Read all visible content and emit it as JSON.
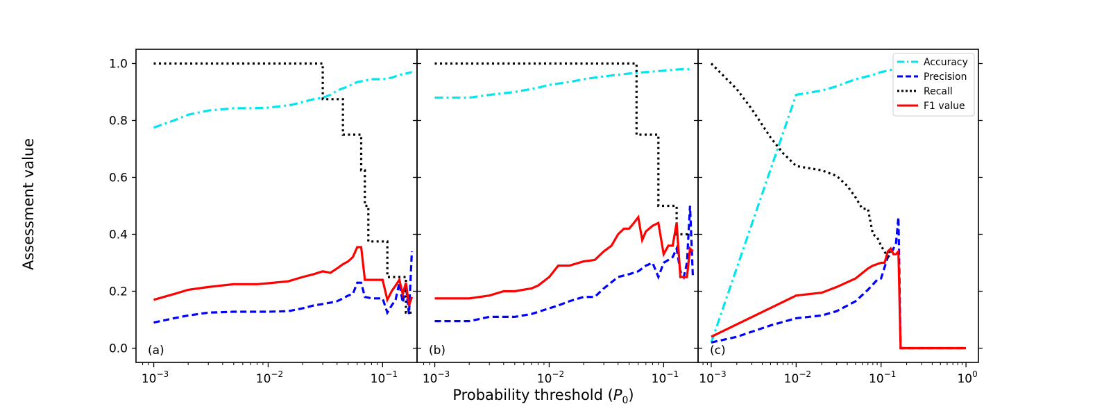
{
  "figure": {
    "ylabel": "Assessment value",
    "xlabel_main": "Probability threshold (",
    "xlabel_sym": "P",
    "xlabel_sub": "0",
    "xlabel_close": ")"
  },
  "legend": {
    "position": "top-right of panel (c)",
    "items": [
      {
        "label": "Accuracy",
        "color": "#00e5ee",
        "style": "dashdot"
      },
      {
        "label": "Precision",
        "color": "#0000ff",
        "style": "dashed"
      },
      {
        "label": "Recall",
        "color": "#000000",
        "style": "dotted"
      },
      {
        "label": "F1 value",
        "color": "#ff0000",
        "style": "solid"
      }
    ]
  },
  "colors": {
    "accuracy": "#00e5ee",
    "precision": "#0000ff",
    "recall": "#000000",
    "f1": "#ff0000"
  },
  "chart_data": [
    {
      "type": "line",
      "panel": "(a)",
      "xscale": "log",
      "xlim": [
        0.0007,
        0.2
      ],
      "ylim": [
        -0.05,
        1.05
      ],
      "yticks": [
        0.0,
        0.2,
        0.4,
        0.6,
        0.8,
        1.0
      ],
      "ytick_labels": [
        "0.0",
        "0.2",
        "0.4",
        "0.6",
        "0.8",
        "1.0"
      ],
      "xticks": [
        0.001,
        0.01,
        0.1
      ],
      "xtick_labels": [
        {
          "base": "10",
          "exp": "−3"
        },
        {
          "base": "10",
          "exp": "−2"
        },
        {
          "base": "10",
          "exp": "−1"
        }
      ],
      "series": [
        {
          "name": "Accuracy",
          "x": [
            0.001,
            0.0015,
            0.002,
            0.003,
            0.005,
            0.007,
            0.01,
            0.013,
            0.016,
            0.02,
            0.025,
            0.03,
            0.035,
            0.04,
            0.05,
            0.06,
            0.07,
            0.08,
            0.1,
            0.12,
            0.14,
            0.16,
            0.18
          ],
          "y": [
            0.775,
            0.8,
            0.82,
            0.835,
            0.843,
            0.843,
            0.845,
            0.85,
            0.855,
            0.865,
            0.875,
            0.88,
            0.89,
            0.905,
            0.92,
            0.935,
            0.94,
            0.945,
            0.945,
            0.95,
            0.96,
            0.965,
            0.97
          ]
        },
        {
          "name": "Precision",
          "x": [
            0.001,
            0.0015,
            0.002,
            0.003,
            0.005,
            0.008,
            0.01,
            0.015,
            0.02,
            0.025,
            0.03,
            0.035,
            0.04,
            0.045,
            0.05,
            0.055,
            0.06,
            0.065,
            0.07,
            0.08,
            0.1,
            0.11,
            0.12,
            0.13,
            0.14,
            0.15,
            0.16,
            0.17,
            0.18
          ],
          "y": [
            0.09,
            0.105,
            0.115,
            0.125,
            0.128,
            0.128,
            0.128,
            0.13,
            0.14,
            0.15,
            0.155,
            0.16,
            0.165,
            0.175,
            0.185,
            0.19,
            0.23,
            0.23,
            0.18,
            0.175,
            0.175,
            0.125,
            0.15,
            0.17,
            0.23,
            0.16,
            0.22,
            0.12,
            0.34
          ]
        },
        {
          "name": "Recall",
          "x": [
            0.001,
            0.03,
            0.03,
            0.045,
            0.045,
            0.065,
            0.065,
            0.07,
            0.07,
            0.075,
            0.075,
            0.11,
            0.11,
            0.16,
            0.16,
            0.18
          ],
          "y": [
            1.0,
            1.0,
            0.875,
            0.875,
            0.75,
            0.75,
            0.625,
            0.625,
            0.5,
            0.5,
            0.375,
            0.375,
            0.25,
            0.25,
            0.125,
            0.125
          ]
        },
        {
          "name": "F1 value",
          "x": [
            0.001,
            0.0015,
            0.002,
            0.003,
            0.005,
            0.008,
            0.01,
            0.015,
            0.02,
            0.025,
            0.03,
            0.035,
            0.04,
            0.045,
            0.05,
            0.055,
            0.06,
            0.065,
            0.07,
            0.08,
            0.1,
            0.11,
            0.12,
            0.13,
            0.14,
            0.15,
            0.16,
            0.17,
            0.18
          ],
          "y": [
            0.17,
            0.19,
            0.205,
            0.215,
            0.225,
            0.225,
            0.228,
            0.235,
            0.25,
            0.26,
            0.27,
            0.265,
            0.28,
            0.295,
            0.305,
            0.32,
            0.355,
            0.355,
            0.24,
            0.24,
            0.24,
            0.17,
            0.2,
            0.22,
            0.24,
            0.19,
            0.23,
            0.15,
            0.18
          ]
        }
      ]
    },
    {
      "type": "line",
      "panel": "(b)",
      "xscale": "log",
      "xlim": [
        0.0007,
        0.2
      ],
      "ylim": [
        -0.05,
        1.05
      ],
      "yticks": [
        0.0,
        0.2,
        0.4,
        0.6,
        0.8,
        1.0
      ],
      "xticks": [
        0.001,
        0.01,
        0.1
      ],
      "xtick_labels": [
        {
          "base": "10",
          "exp": "−3"
        },
        {
          "base": "10",
          "exp": "−2"
        },
        {
          "base": "10",
          "exp": "−1"
        }
      ],
      "series": [
        {
          "name": "Accuracy",
          "x": [
            0.001,
            0.002,
            0.003,
            0.005,
            0.008,
            0.01,
            0.015,
            0.02,
            0.03,
            0.05,
            0.07,
            0.1,
            0.14,
            0.18
          ],
          "y": [
            0.88,
            0.88,
            0.89,
            0.9,
            0.915,
            0.925,
            0.935,
            0.945,
            0.955,
            0.965,
            0.97,
            0.975,
            0.98,
            0.98
          ]
        },
        {
          "name": "Precision",
          "x": [
            0.001,
            0.002,
            0.003,
            0.005,
            0.007,
            0.01,
            0.012,
            0.015,
            0.02,
            0.025,
            0.03,
            0.04,
            0.05,
            0.06,
            0.07,
            0.08,
            0.09,
            0.1,
            0.11,
            0.12,
            0.13,
            0.14,
            0.15,
            0.16,
            0.17,
            0.18
          ],
          "y": [
            0.095,
            0.095,
            0.11,
            0.11,
            0.12,
            0.14,
            0.15,
            0.165,
            0.18,
            0.18,
            0.21,
            0.25,
            0.26,
            0.27,
            0.29,
            0.3,
            0.25,
            0.3,
            0.31,
            0.32,
            0.35,
            0.27,
            0.25,
            0.3,
            0.5,
            0.25
          ]
        },
        {
          "name": "Recall",
          "x": [
            0.001,
            0.058,
            0.058,
            0.09,
            0.09,
            0.13,
            0.13,
            0.17
          ],
          "y": [
            1.0,
            1.0,
            0.75,
            0.75,
            0.5,
            0.5,
            0.4,
            0.4
          ]
        },
        {
          "name": "F1 value",
          "x": [
            0.001,
            0.002,
            0.003,
            0.004,
            0.005,
            0.007,
            0.008,
            0.01,
            0.012,
            0.015,
            0.02,
            0.025,
            0.03,
            0.035,
            0.04,
            0.045,
            0.05,
            0.055,
            0.06,
            0.065,
            0.07,
            0.08,
            0.09,
            0.1,
            0.11,
            0.12,
            0.13,
            0.14,
            0.15,
            0.16,
            0.17,
            0.18
          ],
          "y": [
            0.175,
            0.175,
            0.185,
            0.2,
            0.2,
            0.21,
            0.22,
            0.25,
            0.29,
            0.29,
            0.305,
            0.31,
            0.34,
            0.36,
            0.4,
            0.42,
            0.42,
            0.44,
            0.46,
            0.38,
            0.41,
            0.43,
            0.44,
            0.33,
            0.36,
            0.36,
            0.44,
            0.25,
            0.25,
            0.25,
            0.35,
            0.34
          ]
        }
      ]
    },
    {
      "type": "line",
      "panel": "(c)",
      "xscale": "log",
      "xlim": [
        0.0007,
        1.4
      ],
      "ylim": [
        -0.05,
        1.05
      ],
      "yticks": [
        0.0,
        0.2,
        0.4,
        0.6,
        0.8,
        1.0
      ],
      "xticks": [
        0.001,
        0.01,
        0.1,
        1.0
      ],
      "xtick_labels": [
        {
          "base": "10",
          "exp": "−3"
        },
        {
          "base": "10",
          "exp": "−2"
        },
        {
          "base": "10",
          "exp": "−1"
        },
        {
          "base": "10",
          "exp": "0"
        }
      ],
      "series": [
        {
          "name": "Accuracy",
          "x": [
            0.001,
            0.01,
            0.02,
            0.03,
            0.05,
            0.08,
            0.1,
            0.12,
            0.14
          ],
          "y": [
            0.02,
            0.89,
            0.905,
            0.92,
            0.945,
            0.96,
            0.97,
            0.975,
            0.98
          ]
        },
        {
          "name": "Precision",
          "x": [
            0.001,
            0.002,
            0.005,
            0.01,
            0.02,
            0.03,
            0.05,
            0.07,
            0.09,
            0.1,
            0.12,
            0.13,
            0.14,
            0.15,
            0.16,
            0.17,
            0.18,
            1.0
          ],
          "y": [
            0.02,
            0.04,
            0.08,
            0.105,
            0.115,
            0.13,
            0.165,
            0.205,
            0.24,
            0.245,
            0.32,
            0.33,
            0.35,
            0.37,
            0.46,
            0.0,
            0.0,
            0.0
          ]
        },
        {
          "name": "Recall",
          "x": [
            0.001,
            0.002,
            0.003,
            0.005,
            0.007,
            0.01,
            0.02,
            0.03,
            0.04,
            0.05,
            0.06,
            0.07,
            0.08,
            0.09,
            0.1,
            0.12,
            0.13
          ],
          "y": [
            1.0,
            0.91,
            0.84,
            0.74,
            0.685,
            0.64,
            0.625,
            0.605,
            0.57,
            0.53,
            0.49,
            0.49,
            0.4,
            0.39,
            0.36,
            0.32,
            0.35
          ]
        },
        {
          "name": "F1 value",
          "x": [
            0.001,
            0.01,
            0.02,
            0.03,
            0.05,
            0.07,
            0.08,
            0.1,
            0.11,
            0.12,
            0.13,
            0.14,
            0.15,
            0.16,
            0.17,
            0.18,
            1.0
          ],
          "y": [
            0.04,
            0.185,
            0.195,
            0.215,
            0.245,
            0.28,
            0.29,
            0.3,
            0.3,
            0.34,
            0.35,
            0.33,
            0.33,
            0.34,
            0.0,
            0.0,
            0.0
          ]
        }
      ]
    }
  ]
}
